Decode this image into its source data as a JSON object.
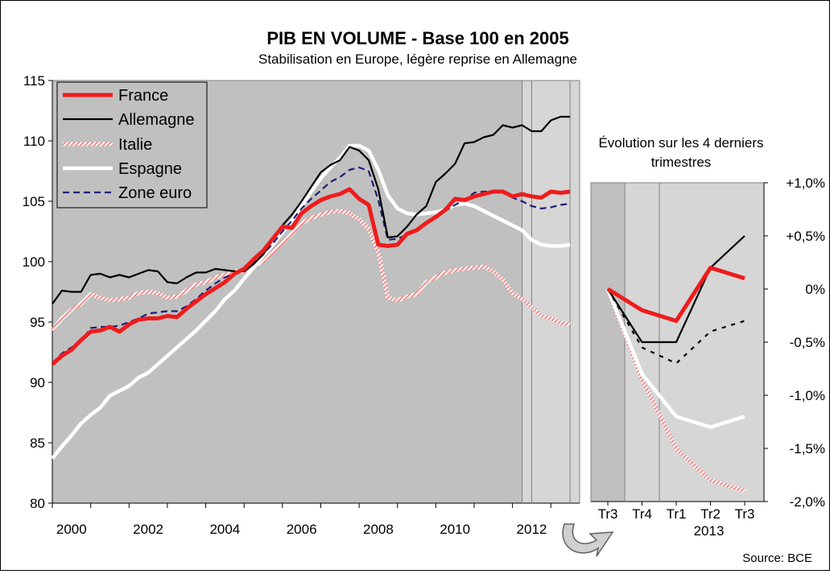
{
  "title": "PIB EN VOLUME - Base 100 en 2005",
  "subtitle": "Stabilisation en Europe, légère reprise en Allemagne",
  "source": "Source: BCE",
  "colors": {
    "France": "#ee1c1c",
    "Allemagne": "#000000",
    "Italie": "#f4a8a8",
    "Espagne": "#ffffff",
    "Zone euro": "#1f1f7a",
    "plot_bg": "#c0c0c0",
    "plot_bg_recent": "#d6d6d6"
  },
  "chart_data": [
    {
      "type": "line",
      "ylim": [
        80,
        115
      ],
      "xlim": [
        2000,
        2013.75
      ],
      "y_ticks": [
        "80",
        "85",
        "90",
        "95",
        "100",
        "105",
        "110",
        "115"
      ],
      "x_tick_labels": [
        "2000",
        "2002",
        "2004",
        "2006",
        "2008",
        "2010",
        "2012"
      ],
      "grid": false,
      "legend": "top-left",
      "legend_entries": [
        "France",
        "Allemagne",
        "Italie",
        "Espagne",
        "Zone euro"
      ],
      "series": [
        {
          "name": "France",
          "style": "thick-solid",
          "x": [
            2000,
            2000.25,
            2000.5,
            2000.75,
            2001,
            2001.25,
            2001.5,
            2001.75,
            2002,
            2002.25,
            2002.5,
            2002.75,
            2003,
            2003.25,
            2003.5,
            2003.75,
            2004,
            2004.25,
            2004.5,
            2004.75,
            2005,
            2005.25,
            2005.5,
            2005.75,
            2006,
            2006.25,
            2006.5,
            2006.75,
            2007,
            2007.25,
            2007.5,
            2007.75,
            2008,
            2008.25,
            2008.5,
            2008.75,
            2009,
            2009.25,
            2009.5,
            2009.75,
            2010,
            2010.25,
            2010.5,
            2010.75,
            2011,
            2011.25,
            2011.5,
            2011.75,
            2012,
            2012.25,
            2012.5,
            2012.75,
            2013,
            2013.25,
            2013.5
          ],
          "values": [
            91.5,
            92.2,
            92.7,
            93.5,
            94.2,
            94.3,
            94.6,
            94.2,
            94.8,
            95.2,
            95.3,
            95.3,
            95.5,
            95.4,
            96.1,
            96.7,
            97.3,
            97.8,
            98.3,
            99.0,
            99.4,
            100.2,
            100.9,
            101.9,
            102.9,
            102.8,
            104.0,
            104.6,
            105.1,
            105.4,
            105.6,
            106.0,
            105.2,
            104.7,
            101.4,
            101.3,
            101.4,
            102.3,
            102.6,
            103.2,
            103.7,
            104.3,
            105.2,
            105.1,
            105.4,
            105.6,
            105.8,
            105.8,
            105.4,
            105.6,
            105.4,
            105.3,
            105.8,
            105.7,
            105.8
          ]
        },
        {
          "name": "Allemagne",
          "style": "solid",
          "x": [
            2000,
            2000.25,
            2000.5,
            2000.75,
            2001,
            2001.25,
            2001.5,
            2001.75,
            2002,
            2002.25,
            2002.5,
            2002.75,
            2003,
            2003.25,
            2003.5,
            2003.75,
            2004,
            2004.25,
            2004.5,
            2004.75,
            2005,
            2005.25,
            2005.5,
            2005.75,
            2006,
            2006.25,
            2006.5,
            2006.75,
            2007,
            2007.25,
            2007.5,
            2007.75,
            2008,
            2008.25,
            2008.5,
            2008.75,
            2009,
            2009.25,
            2009.5,
            2009.75,
            2010,
            2010.25,
            2010.5,
            2010.75,
            2011,
            2011.25,
            2011.5,
            2011.75,
            2012,
            2012.25,
            2012.5,
            2012.75,
            2013,
            2013.25,
            2013.5
          ],
          "values": [
            96.5,
            97.6,
            97.5,
            97.5,
            98.9,
            99.0,
            98.7,
            98.9,
            98.7,
            99.0,
            99.3,
            99.2,
            98.3,
            98.2,
            98.7,
            99.1,
            99.1,
            99.4,
            99.3,
            99.2,
            99.2,
            99.8,
            100.6,
            101.8,
            103.0,
            103.9,
            105.0,
            106.2,
            107.4,
            108.0,
            108.4,
            109.5,
            109.2,
            108.4,
            106.0,
            102.0,
            102.1,
            102.9,
            103.9,
            104.6,
            106.6,
            107.3,
            108.1,
            109.8,
            109.9,
            110.3,
            110.5,
            111.3,
            111.1,
            111.3,
            110.8,
            110.8,
            111.7,
            112.0,
            112.0
          ]
        },
        {
          "name": "Italie",
          "style": "thick-hatched",
          "x": [
            2000,
            2000.25,
            2000.5,
            2000.75,
            2001,
            2001.25,
            2001.5,
            2001.75,
            2002,
            2002.25,
            2002.5,
            2002.75,
            2003,
            2003.25,
            2003.5,
            2003.75,
            2004,
            2004.25,
            2004.5,
            2004.75,
            2005,
            2005.25,
            2005.5,
            2005.75,
            2006,
            2006.25,
            2006.5,
            2006.75,
            2007,
            2007.25,
            2007.5,
            2007.75,
            2008,
            2008.25,
            2008.5,
            2008.75,
            2009,
            2009.25,
            2009.5,
            2009.75,
            2010,
            2010.25,
            2010.5,
            2010.75,
            2011,
            2011.25,
            2011.5,
            2011.75,
            2012,
            2012.25,
            2012.5,
            2012.75,
            2013,
            2013.25,
            2013.5
          ],
          "values": [
            94.3,
            95.3,
            96.0,
            96.5,
            97.3,
            97.0,
            96.8,
            96.9,
            97.0,
            97.4,
            97.5,
            97.4,
            97.0,
            97.1,
            97.6,
            98.1,
            98.3,
            98.7,
            98.9,
            99.2,
            99.2,
            99.7,
            100.0,
            100.8,
            101.6,
            102.3,
            103.2,
            103.6,
            103.9,
            104.1,
            104.2,
            104.0,
            103.5,
            102.7,
            100.8,
            97.0,
            96.8,
            97.1,
            97.3,
            98.3,
            98.7,
            99.1,
            99.3,
            99.4,
            99.5,
            99.6,
            99.2,
            98.5,
            97.4,
            96.9,
            96.2,
            95.5,
            95.3,
            94.9,
            94.8
          ]
        },
        {
          "name": "Espagne",
          "style": "thick-solid",
          "x": [
            2000,
            2000.25,
            2000.5,
            2000.75,
            2001,
            2001.25,
            2001.5,
            2001.75,
            2002,
            2002.25,
            2002.5,
            2002.75,
            2003,
            2003.25,
            2003.5,
            2003.75,
            2004,
            2004.25,
            2004.5,
            2004.75,
            2005,
            2005.25,
            2005.5,
            2005.75,
            2006,
            2006.25,
            2006.5,
            2006.75,
            2007,
            2007.25,
            2007.5,
            2007.75,
            2008,
            2008.25,
            2008.5,
            2008.75,
            2009,
            2009.25,
            2009.5,
            2009.75,
            2010,
            2010.25,
            2010.5,
            2010.75,
            2011,
            2011.25,
            2011.5,
            2011.75,
            2012,
            2012.25,
            2012.5,
            2012.75,
            2013,
            2013.25,
            2013.5
          ],
          "values": [
            83.7,
            84.7,
            85.6,
            86.6,
            87.3,
            87.9,
            88.9,
            89.3,
            89.7,
            90.4,
            90.8,
            91.5,
            92.2,
            92.9,
            93.6,
            94.3,
            95.1,
            95.9,
            96.9,
            97.6,
            98.6,
            99.5,
            100.5,
            101.4,
            102.4,
            103.4,
            104.6,
            105.8,
            106.9,
            107.8,
            108.6,
            109.6,
            109.6,
            109.2,
            107.6,
            105.5,
            104.4,
            104.0,
            103.9,
            104.0,
            104.1,
            104.3,
            104.7,
            104.8,
            104.6,
            104.2,
            103.8,
            103.4,
            103.0,
            102.6,
            101.8,
            101.4,
            101.3,
            101.3,
            101.4
          ]
        },
        {
          "name": "Zone euro",
          "style": "dashed",
          "x": [
            2000,
            2000.25,
            2000.5,
            2000.75,
            2001,
            2001.25,
            2001.5,
            2001.75,
            2002,
            2002.25,
            2002.5,
            2002.75,
            2003,
            2003.25,
            2003.5,
            2003.75,
            2004,
            2004.25,
            2004.5,
            2004.75,
            2005,
            2005.25,
            2005.5,
            2005.75,
            2006,
            2006.25,
            2006.5,
            2006.75,
            2007,
            2007.25,
            2007.5,
            2007.75,
            2008,
            2008.25,
            2008.5,
            2008.75,
            2009,
            2009.25,
            2009.5,
            2009.75,
            2010,
            2010.25,
            2010.5,
            2010.75,
            2011,
            2011.25,
            2011.5,
            2011.75,
            2012,
            2012.25,
            2012.5,
            2012.75,
            2013,
            2013.25,
            2013.5
          ],
          "values": [
            91.6,
            92.4,
            92.9,
            93.4,
            94.5,
            94.6,
            94.6,
            94.7,
            95.0,
            95.3,
            95.7,
            95.8,
            95.9,
            95.9,
            96.3,
            96.9,
            97.6,
            98.2,
            98.7,
            99.0,
            99.3,
            99.9,
            100.6,
            101.5,
            102.5,
            103.4,
            104.4,
            105.2,
            105.9,
            106.6,
            107.0,
            107.6,
            107.8,
            107.5,
            105.1,
            101.8,
            101.9,
            102.2,
            102.6,
            103.2,
            103.6,
            104.2,
            104.7,
            105.1,
            105.7,
            105.8,
            105.8,
            105.7,
            105.3,
            105.0,
            104.6,
            104.4,
            104.5,
            104.7,
            104.8
          ]
        }
      ]
    },
    {
      "type": "line",
      "title": "Évolution sur les 4 derniers trimestres",
      "categories": [
        "Tr3",
        "Tr4",
        "Tr1",
        "Tr2",
        "Tr3"
      ],
      "year_label": "2013",
      "ylim": [
        -2.0,
        1.0
      ],
      "y_tick_labels": [
        "+1,0%",
        "+0,5%",
        "0%",
        "-0,5%",
        "-1,0%",
        "-1,5%",
        "-2,0%"
      ],
      "grid": false,
      "series": [
        {
          "name": "France",
          "style": "thick-solid",
          "values": [
            0,
            -0.2,
            -0.3,
            0.2,
            0.1
          ]
        },
        {
          "name": "Allemagne",
          "style": "solid",
          "values": [
            0,
            -0.5,
            -0.5,
            0.2,
            0.5
          ]
        },
        {
          "name": "Italie",
          "style": "thick-hatched",
          "values": [
            0,
            -0.85,
            -1.5,
            -1.8,
            -1.9
          ]
        },
        {
          "name": "Espagne",
          "style": "thick-solid",
          "values": [
            0,
            -0.8,
            -1.2,
            -1.3,
            -1.2
          ]
        },
        {
          "name": "Zone euro",
          "style": "dotted",
          "values": [
            0,
            -0.55,
            -0.7,
            -0.4,
            -0.3
          ]
        }
      ]
    }
  ]
}
